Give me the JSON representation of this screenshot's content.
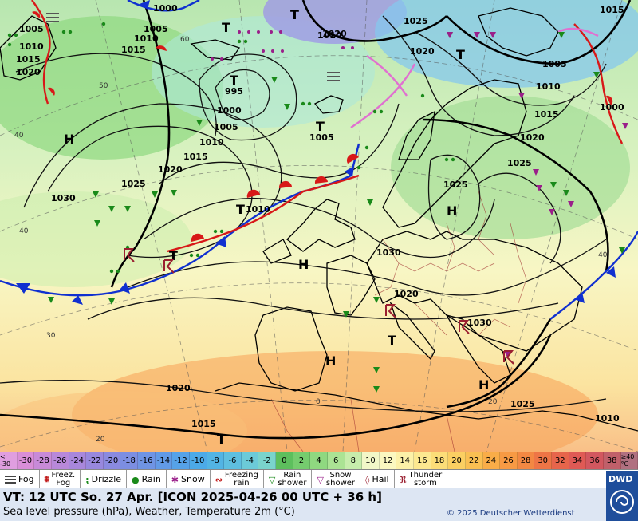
{
  "map": {
    "isobar_labels": [
      "1000",
      "1005",
      "1010",
      "1015",
      "1020",
      "1025",
      "1030",
      "995",
      "1005",
      "1010",
      "1015",
      "1020",
      "1025",
      "1030",
      "1025",
      "1020",
      "1015",
      "1010",
      "1005",
      "1000",
      "1020",
      "1025",
      "1015",
      "1010",
      "1020",
      "1015",
      "1020",
      "1030",
      "1005",
      "1010",
      "1000",
      "1010",
      "1005",
      "1010",
      "1015",
      "1020",
      "1025"
    ],
    "pressure_systems": [
      {
        "type": "H",
        "label": "H"
      },
      {
        "type": "H",
        "label": "H"
      },
      {
        "type": "H",
        "label": "H"
      },
      {
        "type": "H",
        "label": "H"
      },
      {
        "type": "H",
        "label": "H"
      },
      {
        "type": "T",
        "label": "T"
      },
      {
        "type": "T",
        "label": "T"
      },
      {
        "type": "T",
        "label": "T"
      },
      {
        "type": "T",
        "label": "T"
      },
      {
        "type": "T",
        "label": "T"
      },
      {
        "type": "T",
        "label": "T"
      },
      {
        "type": "T",
        "label": "T"
      },
      {
        "type": "T",
        "label": "T"
      },
      {
        "type": "T",
        "label": "T"
      }
    ],
    "grid_labels": [
      "60",
      "50",
      "40",
      "40",
      "30",
      "20",
      "0",
      "20",
      "40"
    ]
  },
  "temperature_scale": {
    "values": [
      "-30",
      "-28",
      "-26",
      "-24",
      "-22",
      "-20",
      "-18",
      "-16",
      "-14",
      "-12",
      "-10",
      "-8",
      "-6",
      "-4",
      "-2",
      "0",
      "2",
      "4",
      "6",
      "8",
      "10",
      "12",
      "14",
      "16",
      "18",
      "20",
      "22",
      "24",
      "26",
      "28",
      "30",
      "32",
      "34",
      "36",
      "38"
    ],
    "low_label": "< -30",
    "high_label": "≥40 °C",
    "colors": [
      "#d98ed8",
      "#c88ad8",
      "#b888da",
      "#a887dc",
      "#9888de",
      "#8a8ae0",
      "#7c8ee2",
      "#6f94e4",
      "#629ae6",
      "#56a2e8",
      "#4caae8",
      "#52b4e4",
      "#5ebfe0",
      "#6ccad8",
      "#7ad4cc",
      "#5dbf5d",
      "#75cc6e",
      "#8fd880",
      "#abe394",
      "#c7edac",
      "#f2f7c8",
      "#fbf8c0",
      "#fcf1a8",
      "#fce890",
      "#fcdd78",
      "#fbcf62",
      "#fabf52",
      "#f9ad48",
      "#f79a44",
      "#f38843",
      "#ee7546",
      "#e7654b",
      "#df5a55",
      "#d2575f",
      "#c0606a"
    ]
  },
  "legend": {
    "items": [
      {
        "label": "Fog",
        "icon": "fog-icon"
      },
      {
        "label": "Freez.\nFog",
        "icon": "freezing-fog-icon"
      },
      {
        "label": "Drizzle",
        "icon": "drizzle-icon"
      },
      {
        "label": "Rain",
        "icon": "rain-icon"
      },
      {
        "label": "Snow",
        "icon": "snow-icon"
      },
      {
        "label": "Freezing\nrain",
        "icon": "freezing-rain-icon"
      },
      {
        "label": "Rain\nshower",
        "icon": "rain-shower-icon"
      },
      {
        "label": "Snow\nshower",
        "icon": "snow-shower-icon"
      },
      {
        "label": "Hail",
        "icon": "hail-icon"
      },
      {
        "label": "Thunder\nstorm",
        "icon": "thunderstorm-icon"
      }
    ]
  },
  "footer": {
    "valid_time": "VT: 12 UTC So.  27 Apr. [ICON 2025-04-26  00 UTC + 36 h]",
    "subtitle": "Sea level pressure (hPa), Weather, Temperature 2m (°C)",
    "copyright": "© 2025 Deutscher Wetterdienst",
    "logo": "DWD"
  }
}
